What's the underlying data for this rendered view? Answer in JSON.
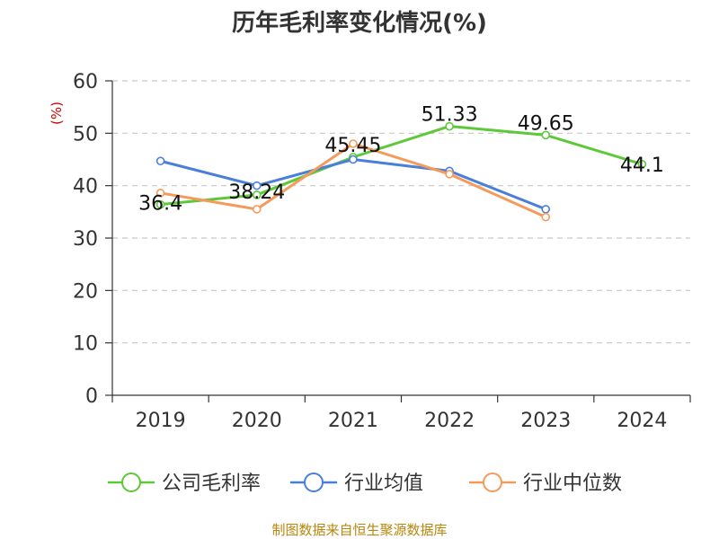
{
  "chart_data": {
    "type": "line",
    "title": "历年毛利率变化情况(%)",
    "ylabel": "(%)",
    "xlabel": "",
    "categories": [
      "2019",
      "2020",
      "2021",
      "2022",
      "2023",
      "2024"
    ],
    "ylim": [
      0,
      60
    ],
    "yticks": [
      0,
      10,
      20,
      30,
      40,
      50,
      60
    ],
    "grid": true,
    "legend_position": "bottom",
    "series": [
      {
        "name": "公司毛利率",
        "color": "#5cc83a",
        "values": [
          36.4,
          38.24,
          45.45,
          51.33,
          49.65,
          44.1
        ],
        "labels": [
          "36.4",
          "38.24",
          "45.45",
          "51.33",
          "49.65",
          "44.1"
        ]
      },
      {
        "name": "行业均值",
        "color": "#4a7fd9",
        "values": [
          44.7,
          40.0,
          45.0,
          42.8,
          35.5,
          null
        ]
      },
      {
        "name": "行业中位数",
        "color": "#f49a5b",
        "values": [
          38.6,
          35.5,
          48.0,
          42.2,
          34.0,
          null
        ]
      }
    ]
  },
  "source_text": "制图数据来自恒生聚源数据库"
}
